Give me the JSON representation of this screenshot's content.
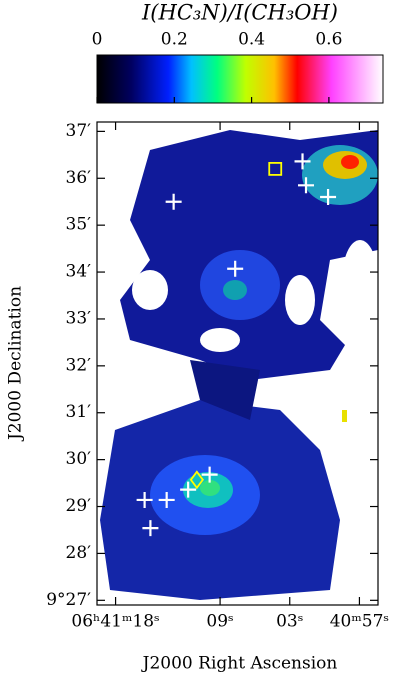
{
  "chart_data": {
    "type": "map",
    "colorbar_title": "I(HC₃N)/I(CH₃OH)",
    "clim": [
      0,
      0.74
    ],
    "cticks": [
      0,
      {
        "value": 0.2,
        "label": "0.2"
      },
      {
        "value": 0.4,
        "label": "0.4"
      },
      {
        "value": 0.6,
        "label": "0.6"
      }
    ],
    "xlabel": "J2000 Right Ascension",
    "ylabel": "J2000 Declination",
    "xlim": [
      19.6,
      -4.6
    ],
    "xticks": [
      {
        "value": 18,
        "label": "06ʰ41ᵐ18ˢ"
      },
      {
        "value": 9,
        "label": "09ˢ"
      },
      {
        "value": 3,
        "label": "03ˢ"
      },
      {
        "value": -3,
        "label": "40ᵐ57ˢ"
      }
    ],
    "ylim": [
      26.9,
      37.2
    ],
    "yticks": [
      {
        "value": 27,
        "label": "9°27′"
      },
      {
        "value": 28,
        "label": "28′"
      },
      {
        "value": 29,
        "label": "29′"
      },
      {
        "value": 30,
        "label": "30′"
      },
      {
        "value": 31,
        "label": "31′"
      },
      {
        "value": 32,
        "label": "32′"
      },
      {
        "value": 33,
        "label": "33′"
      },
      {
        "value": 34,
        "label": "34′"
      },
      {
        "value": 35,
        "label": "35′"
      },
      {
        "value": 36,
        "label": "36′"
      },
      {
        "value": 37,
        "label": "37′"
      }
    ],
    "crosses": {
      "color": "#ffffff",
      "x": [
        1.9,
        1.6,
        -0.3,
        13.0,
        7.7,
        9.9,
        11.75,
        13.6,
        15.5,
        15.0
      ],
      "y": [
        36.36,
        35.85,
        35.6,
        35.5,
        34.07,
        29.68,
        29.36,
        29.14,
        29.14,
        28.54
      ]
    },
    "square": {
      "color": "#ffff00",
      "x": 4.25,
      "y": 36.2
    },
    "diamond": {
      "color": "#ffff00",
      "x": 11.0,
      "y": 29.57
    }
  }
}
